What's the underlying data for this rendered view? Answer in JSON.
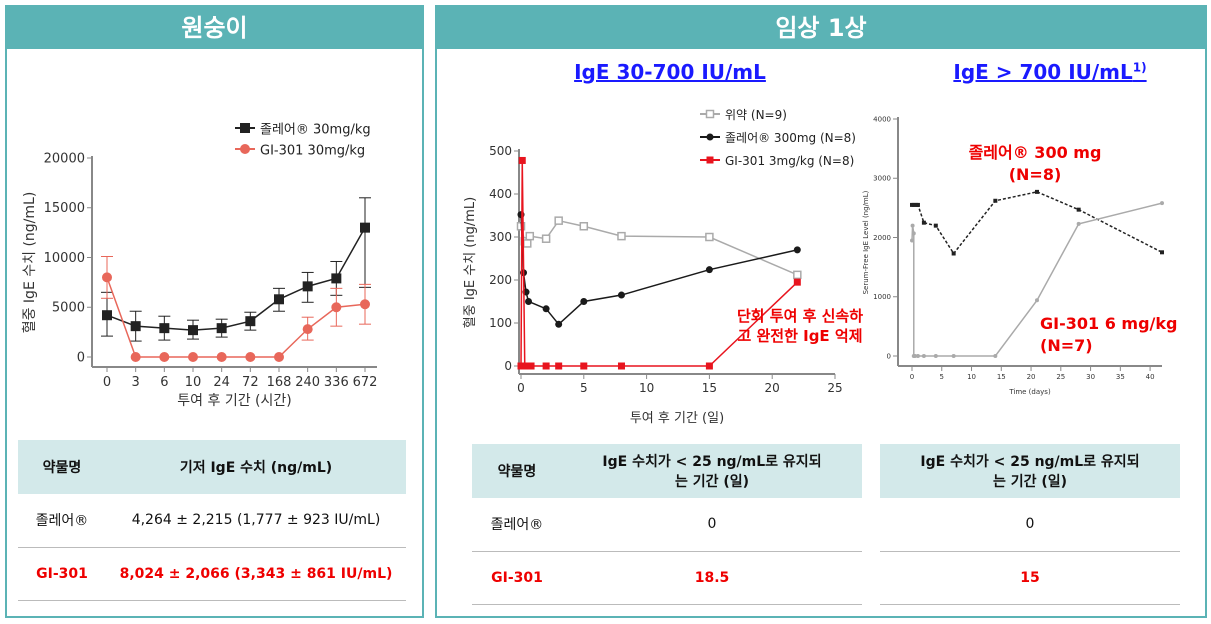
{
  "left": {
    "title": "원숭이",
    "table": {
      "headers": [
        "약물명",
        "기저 IgE 수치 (ng/mL)"
      ],
      "rows": [
        {
          "drug": "졸레어®",
          "value": "4,264 ± 2,215  (1,777 ± 923 IU/mL)"
        },
        {
          "drug": "GI-301",
          "value": "8,024 ± 2,066  (3,343 ± 861 IU/mL)"
        }
      ]
    }
  },
  "right": {
    "title": "임상 1상",
    "sub1": "IgE 30-700 IU/mL",
    "sub2": "IgE > 700 IU/mL",
    "sub2_sup": "1)",
    "table1": {
      "headers": [
        "약물명",
        "IgE  수치가 < 25 ng/mL로 유지되는 기간 (일)"
      ],
      "rows": [
        {
          "drug": "졸레어®",
          "value": "0"
        },
        {
          "drug": "GI-301",
          "value": "18.5"
        }
      ]
    },
    "table2": {
      "header": "IgE  수치가 < 25 ng/mL로 유지되는 기간 (일)",
      "rows": [
        "0",
        "15"
      ]
    },
    "annotation": "단회 투여 후 신속하고 완전한 IgE 억제",
    "label_xolair": "졸레어®  300 mg",
    "label_xolair_n": "(N=8)",
    "label_gi": "GI-301 6 mg/kg",
    "label_gi_n": "(N=7)"
  },
  "chart_data": [
    {
      "type": "line",
      "xlabel": "투여 후 기간 (시간)",
      "ylabel": "혈중 IgE 수치 (ng/mL)",
      "ylim": [
        0,
        20000
      ],
      "yticks": [
        0,
        5000,
        10000,
        15000,
        20000
      ],
      "categories": [
        "0",
        "3",
        "6",
        "10",
        "24",
        "72",
        "168",
        "240",
        "336",
        "672"
      ],
      "legend": "top-right",
      "series": [
        {
          "name": "졸레어® 30mg/kg",
          "color": "#222222",
          "marker": "square",
          "values": [
            4200,
            3100,
            2900,
            2700,
            2900,
            3600,
            5800,
            7100,
            7900,
            13000
          ],
          "err_low": [
            2100,
            1600,
            1700,
            1800,
            2000,
            2700,
            4600,
            5500,
            6200,
            7000
          ],
          "err_high": [
            6500,
            4600,
            4100,
            3700,
            3800,
            4500,
            6900,
            8500,
            9600,
            16000
          ]
        },
        {
          "name": "GI-301 30mg/kg",
          "color": "#E8675A",
          "marker": "circle",
          "values": [
            8000,
            0,
            0,
            0,
            0,
            0,
            0,
            2800,
            5000,
            5300
          ],
          "err_low": [
            5900,
            0,
            0,
            0,
            0,
            0,
            0,
            1700,
            3100,
            3300
          ],
          "err_high": [
            10100,
            0,
            0,
            0,
            0,
            0,
            0,
            4000,
            6900,
            7300
          ]
        }
      ]
    },
    {
      "type": "line",
      "xlabel": "투여 후 기간 (일)",
      "ylabel": "혈중 IgE 수치 (ng/mL)",
      "xlim": [
        0,
        25
      ],
      "ylim": [
        0,
        500
      ],
      "xticks": [
        0,
        5,
        10,
        15,
        20,
        25
      ],
      "yticks": [
        0,
        100,
        200,
        300,
        400,
        500
      ],
      "legend": "top-right",
      "series": [
        {
          "name": "위약 (N=9)",
          "color": "#aaaaaa",
          "marker": "open-square",
          "points": [
            [
              0,
              325
            ],
            [
              0.3,
              290
            ],
            [
              0.5,
              285
            ],
            [
              0.7,
              302
            ],
            [
              2,
              296
            ],
            [
              3,
              338
            ],
            [
              5,
              325
            ],
            [
              8,
              302
            ],
            [
              15,
              300
            ],
            [
              22,
              212
            ]
          ]
        },
        {
          "name": "졸레어® 300mg (N=8)",
          "color": "#1a1a1a",
          "marker": "circle",
          "points": [
            [
              0,
              352
            ],
            [
              0.2,
              217
            ],
            [
              0.4,
              172
            ],
            [
              0.6,
              150
            ],
            [
              2,
              133
            ],
            [
              3,
              97
            ],
            [
              5,
              150
            ],
            [
              8,
              165
            ],
            [
              15,
              224
            ],
            [
              22,
              270
            ]
          ]
        },
        {
          "name": "GI-301 3mg/kg (N=8)",
          "color": "#E8141E",
          "marker": "square",
          "points": [
            [
              0,
              0
            ],
            [
              0.1,
              478
            ],
            [
              0.3,
              0
            ],
            [
              0.5,
              0
            ],
            [
              0.8,
              0
            ],
            [
              2,
              0
            ],
            [
              3,
              0
            ],
            [
              5,
              0
            ],
            [
              8,
              0
            ],
            [
              15,
              0
            ],
            [
              22,
              195
            ]
          ]
        }
      ]
    },
    {
      "type": "line",
      "xlabel": "Time (days)",
      "ylabel": "Serum-Free IgE Level (ng/mL)",
      "xlim": [
        0,
        42
      ],
      "ylim": [
        0,
        4000
      ],
      "xticks": [
        0,
        5,
        10,
        15,
        20,
        25,
        30,
        35,
        40
      ],
      "yticks": [
        0,
        1000,
        2000,
        3000,
        4000
      ],
      "series": [
        {
          "color": "#222222",
          "dash": true,
          "marker": "square",
          "points": [
            [
              0,
              2550
            ],
            [
              0.3,
              2550
            ],
            [
              0.7,
              2550
            ],
            [
              1,
              2550
            ],
            [
              2,
              2250
            ],
            [
              4,
              2200
            ],
            [
              7,
              1730
            ],
            [
              14,
              2620
            ],
            [
              21,
              2770
            ],
            [
              28,
              2470
            ],
            [
              42,
              1750
            ]
          ]
        },
        {
          "color": "#aaaaaa",
          "marker": "circle",
          "points": [
            [
              0,
              1950
            ],
            [
              0.1,
              2200
            ],
            [
              0.3,
              2070
            ],
            [
              0.3,
              0
            ],
            [
              0.5,
              0
            ],
            [
              1,
              0
            ],
            [
              2,
              0
            ],
            [
              4,
              0
            ],
            [
              7,
              0
            ],
            [
              14,
              0
            ],
            [
              21,
              940
            ],
            [
              28,
              2230
            ],
            [
              42,
              2580
            ]
          ]
        }
      ]
    }
  ]
}
